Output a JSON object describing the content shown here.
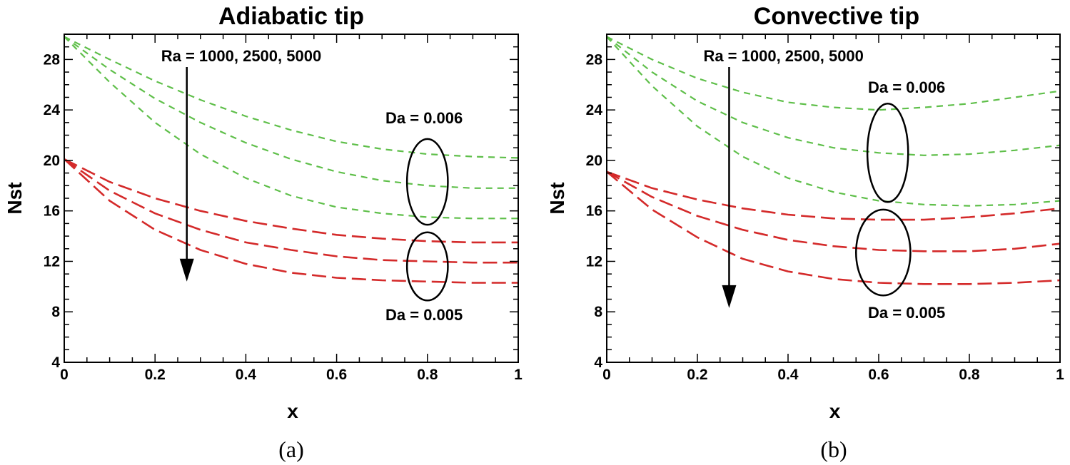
{
  "colors": {
    "green": "#5fbf4a",
    "red": "#d42a2a",
    "axis": "#000000"
  },
  "chart_data": [
    {
      "type": "line",
      "panel_caption": "(a)",
      "title": "Adiabatic tip",
      "xlabel": "x",
      "ylabel": "Nst",
      "xlim": [
        0,
        1
      ],
      "ylim": [
        4,
        30
      ],
      "xticks": [
        0,
        0.2,
        0.4,
        0.6,
        0.8,
        1
      ],
      "xtick_labels": [
        "0",
        "0.2",
        "0.4",
        "0.6",
        "0.8",
        "1"
      ],
      "yticks": [
        4,
        8,
        12,
        16,
        20,
        24,
        28
      ],
      "ytick_labels": [
        "4",
        "8",
        "12",
        "16",
        "20",
        "24",
        "28"
      ],
      "grid": false,
      "annotations": {
        "arrow_label": "Ra = 1000, 2500, 5000",
        "arrow": {
          "x": 0.27,
          "y_from": 27.4,
          "y_to": 10.4
        },
        "group_upper": {
          "label": "Da = 0.006",
          "ellipse": {
            "cx": 0.8,
            "cy": 18.3,
            "rx": 0.045,
            "ry": 3.4
          }
        },
        "group_lower": {
          "label": "Da = 0.005",
          "ellipse": {
            "cx": 0.8,
            "cy": 11.6,
            "rx": 0.045,
            "ry": 2.7
          }
        }
      },
      "series": [
        {
          "name": "Da = 0.006, Ra = 1000",
          "group": "Da = 0.006",
          "x": [
            0,
            0.1,
            0.2,
            0.3,
            0.4,
            0.5,
            0.6,
            0.7,
            0.8,
            0.9,
            1.0
          ],
          "y": [
            29.8,
            28.0,
            26.3,
            24.8,
            23.5,
            22.4,
            21.5,
            20.9,
            20.5,
            20.3,
            20.2
          ]
        },
        {
          "name": "Da = 0.006, Ra = 2500",
          "group": "Da = 0.006",
          "x": [
            0,
            0.1,
            0.2,
            0.3,
            0.4,
            0.5,
            0.6,
            0.7,
            0.8,
            0.9,
            1.0
          ],
          "y": [
            29.8,
            27.2,
            24.9,
            23.0,
            21.4,
            20.1,
            19.1,
            18.4,
            18.0,
            17.8,
            17.8
          ]
        },
        {
          "name": "Da = 0.006, Ra = 5000",
          "group": "Da = 0.006",
          "x": [
            0,
            0.1,
            0.2,
            0.3,
            0.4,
            0.5,
            0.6,
            0.7,
            0.8,
            0.9,
            1.0
          ],
          "y": [
            29.8,
            26.2,
            23.0,
            20.5,
            18.6,
            17.2,
            16.3,
            15.8,
            15.5,
            15.4,
            15.4
          ]
        },
        {
          "name": "Da = 0.005, Ra = 1000",
          "group": "Da = 0.005",
          "x": [
            0,
            0.1,
            0.2,
            0.3,
            0.4,
            0.5,
            0.6,
            0.7,
            0.8,
            0.9,
            1.0
          ],
          "y": [
            20.1,
            18.3,
            17.0,
            16.0,
            15.2,
            14.6,
            14.1,
            13.8,
            13.6,
            13.5,
            13.5
          ]
        },
        {
          "name": "Da = 0.005, Ra = 2500",
          "group": "Da = 0.005",
          "x": [
            0,
            0.1,
            0.2,
            0.3,
            0.4,
            0.5,
            0.6,
            0.7,
            0.8,
            0.9,
            1.0
          ],
          "y": [
            20.1,
            17.6,
            15.8,
            14.5,
            13.5,
            12.9,
            12.4,
            12.1,
            12.0,
            11.9,
            11.9
          ]
        },
        {
          "name": "Da = 0.005, Ra = 5000",
          "group": "Da = 0.005",
          "x": [
            0,
            0.1,
            0.2,
            0.3,
            0.4,
            0.5,
            0.6,
            0.7,
            0.8,
            0.9,
            1.0
          ],
          "y": [
            20.1,
            16.8,
            14.5,
            12.9,
            11.8,
            11.1,
            10.7,
            10.5,
            10.4,
            10.3,
            10.3
          ]
        }
      ]
    },
    {
      "type": "line",
      "panel_caption": "(b)",
      "title": "Convective tip",
      "xlabel": "x",
      "ylabel": "Nst",
      "xlim": [
        0,
        1
      ],
      "ylim": [
        4,
        30
      ],
      "xticks": [
        0,
        0.2,
        0.4,
        0.6,
        0.8,
        1
      ],
      "xtick_labels": [
        "0",
        "0.2",
        "0.4",
        "0.6",
        "0.8",
        "1"
      ],
      "yticks": [
        4,
        8,
        12,
        16,
        20,
        24,
        28
      ],
      "ytick_labels": [
        "4",
        "8",
        "12",
        "16",
        "20",
        "24",
        "28"
      ],
      "grid": false,
      "annotations": {
        "arrow_label": "Ra = 1000, 2500, 5000",
        "arrow": {
          "x": 0.27,
          "y_from": 27.4,
          "y_to": 8.3
        },
        "group_upper": {
          "label": "Da = 0.006",
          "ellipse": {
            "cx": 0.62,
            "cy": 20.6,
            "rx": 0.045,
            "ry": 3.9
          }
        },
        "group_lower": {
          "label": "Da = 0.005",
          "ellipse": {
            "cx": 0.61,
            "cy": 12.7,
            "rx": 0.06,
            "ry": 3.4
          }
        }
      },
      "series": [
        {
          "name": "Da = 0.006, Ra = 1000",
          "group": "Da = 0.006",
          "x": [
            0,
            0.1,
            0.2,
            0.3,
            0.4,
            0.5,
            0.6,
            0.7,
            0.8,
            0.9,
            1.0
          ],
          "y": [
            29.8,
            28.0,
            26.5,
            25.4,
            24.6,
            24.2,
            24.0,
            24.2,
            24.5,
            25.0,
            25.5
          ]
        },
        {
          "name": "Da = 0.006, Ra = 2500",
          "group": "Da = 0.006",
          "x": [
            0,
            0.1,
            0.2,
            0.3,
            0.4,
            0.5,
            0.6,
            0.7,
            0.8,
            0.9,
            1.0
          ],
          "y": [
            29.8,
            27.0,
            24.7,
            23.0,
            21.8,
            21.0,
            20.6,
            20.4,
            20.5,
            20.8,
            21.2
          ]
        },
        {
          "name": "Da = 0.006, Ra = 5000",
          "group": "Da = 0.006",
          "x": [
            0,
            0.1,
            0.2,
            0.3,
            0.4,
            0.5,
            0.6,
            0.7,
            0.8,
            0.9,
            1.0
          ],
          "y": [
            29.8,
            25.9,
            22.7,
            20.3,
            18.6,
            17.5,
            16.8,
            16.5,
            16.4,
            16.5,
            16.8
          ]
        },
        {
          "name": "Da = 0.005, Ra = 1000",
          "group": "Da = 0.005",
          "x": [
            0,
            0.1,
            0.2,
            0.3,
            0.4,
            0.5,
            0.6,
            0.7,
            0.8,
            0.9,
            1.0
          ],
          "y": [
            19.1,
            17.8,
            16.9,
            16.2,
            15.7,
            15.4,
            15.3,
            15.3,
            15.5,
            15.8,
            16.2
          ]
        },
        {
          "name": "Da = 0.005, Ra = 2500",
          "group": "Da = 0.005",
          "x": [
            0,
            0.1,
            0.2,
            0.3,
            0.4,
            0.5,
            0.6,
            0.7,
            0.8,
            0.9,
            1.0
          ],
          "y": [
            19.1,
            17.1,
            15.6,
            14.5,
            13.7,
            13.2,
            12.9,
            12.8,
            12.8,
            13.0,
            13.4
          ]
        },
        {
          "name": "Da = 0.005, Ra = 5000",
          "group": "Da = 0.005",
          "x": [
            0,
            0.1,
            0.2,
            0.3,
            0.4,
            0.5,
            0.6,
            0.7,
            0.8,
            0.9,
            1.0
          ],
          "y": [
            19.1,
            16.1,
            13.9,
            12.2,
            11.2,
            10.6,
            10.3,
            10.2,
            10.2,
            10.3,
            10.5
          ]
        }
      ]
    }
  ]
}
